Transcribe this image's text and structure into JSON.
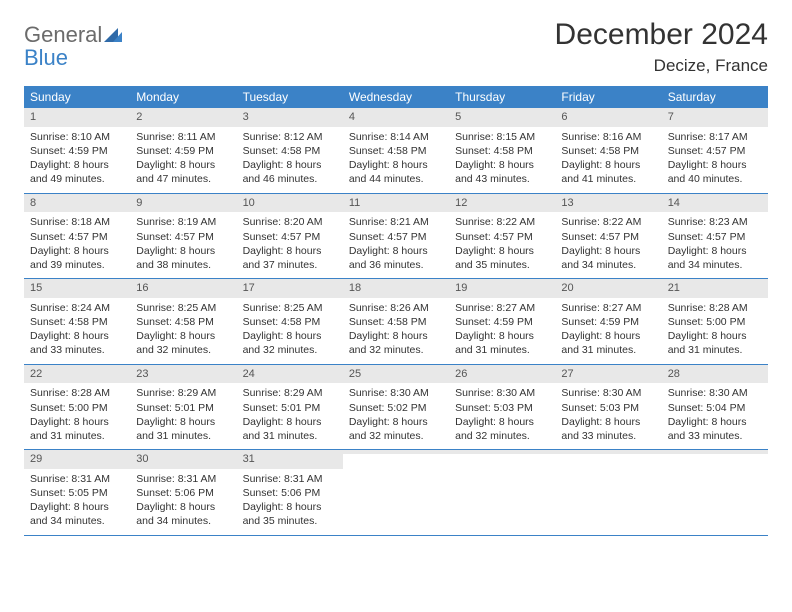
{
  "logo": {
    "general": "General",
    "blue": "Blue"
  },
  "header": {
    "title": "December 2024",
    "location": "Decize, France"
  },
  "colors": {
    "header_bg": "#3b82c7",
    "daynum_bg": "#e8e8e8",
    "text": "#333333",
    "logo_gray": "#6b6b6b",
    "logo_blue": "#3b82c7"
  },
  "weekdays": [
    "Sunday",
    "Monday",
    "Tuesday",
    "Wednesday",
    "Thursday",
    "Friday",
    "Saturday"
  ],
  "weeks": [
    [
      {
        "n": "1",
        "sr": "Sunrise: 8:10 AM",
        "ss": "Sunset: 4:59 PM",
        "d1": "Daylight: 8 hours",
        "d2": "and 49 minutes."
      },
      {
        "n": "2",
        "sr": "Sunrise: 8:11 AM",
        "ss": "Sunset: 4:59 PM",
        "d1": "Daylight: 8 hours",
        "d2": "and 47 minutes."
      },
      {
        "n": "3",
        "sr": "Sunrise: 8:12 AM",
        "ss": "Sunset: 4:58 PM",
        "d1": "Daylight: 8 hours",
        "d2": "and 46 minutes."
      },
      {
        "n": "4",
        "sr": "Sunrise: 8:14 AM",
        "ss": "Sunset: 4:58 PM",
        "d1": "Daylight: 8 hours",
        "d2": "and 44 minutes."
      },
      {
        "n": "5",
        "sr": "Sunrise: 8:15 AM",
        "ss": "Sunset: 4:58 PM",
        "d1": "Daylight: 8 hours",
        "d2": "and 43 minutes."
      },
      {
        "n": "6",
        "sr": "Sunrise: 8:16 AM",
        "ss": "Sunset: 4:58 PM",
        "d1": "Daylight: 8 hours",
        "d2": "and 41 minutes."
      },
      {
        "n": "7",
        "sr": "Sunrise: 8:17 AM",
        "ss": "Sunset: 4:57 PM",
        "d1": "Daylight: 8 hours",
        "d2": "and 40 minutes."
      }
    ],
    [
      {
        "n": "8",
        "sr": "Sunrise: 8:18 AM",
        "ss": "Sunset: 4:57 PM",
        "d1": "Daylight: 8 hours",
        "d2": "and 39 minutes."
      },
      {
        "n": "9",
        "sr": "Sunrise: 8:19 AM",
        "ss": "Sunset: 4:57 PM",
        "d1": "Daylight: 8 hours",
        "d2": "and 38 minutes."
      },
      {
        "n": "10",
        "sr": "Sunrise: 8:20 AM",
        "ss": "Sunset: 4:57 PM",
        "d1": "Daylight: 8 hours",
        "d2": "and 37 minutes."
      },
      {
        "n": "11",
        "sr": "Sunrise: 8:21 AM",
        "ss": "Sunset: 4:57 PM",
        "d1": "Daylight: 8 hours",
        "d2": "and 36 minutes."
      },
      {
        "n": "12",
        "sr": "Sunrise: 8:22 AM",
        "ss": "Sunset: 4:57 PM",
        "d1": "Daylight: 8 hours",
        "d2": "and 35 minutes."
      },
      {
        "n": "13",
        "sr": "Sunrise: 8:22 AM",
        "ss": "Sunset: 4:57 PM",
        "d1": "Daylight: 8 hours",
        "d2": "and 34 minutes."
      },
      {
        "n": "14",
        "sr": "Sunrise: 8:23 AM",
        "ss": "Sunset: 4:57 PM",
        "d1": "Daylight: 8 hours",
        "d2": "and 34 minutes."
      }
    ],
    [
      {
        "n": "15",
        "sr": "Sunrise: 8:24 AM",
        "ss": "Sunset: 4:58 PM",
        "d1": "Daylight: 8 hours",
        "d2": "and 33 minutes."
      },
      {
        "n": "16",
        "sr": "Sunrise: 8:25 AM",
        "ss": "Sunset: 4:58 PM",
        "d1": "Daylight: 8 hours",
        "d2": "and 32 minutes."
      },
      {
        "n": "17",
        "sr": "Sunrise: 8:25 AM",
        "ss": "Sunset: 4:58 PM",
        "d1": "Daylight: 8 hours",
        "d2": "and 32 minutes."
      },
      {
        "n": "18",
        "sr": "Sunrise: 8:26 AM",
        "ss": "Sunset: 4:58 PM",
        "d1": "Daylight: 8 hours",
        "d2": "and 32 minutes."
      },
      {
        "n": "19",
        "sr": "Sunrise: 8:27 AM",
        "ss": "Sunset: 4:59 PM",
        "d1": "Daylight: 8 hours",
        "d2": "and 31 minutes."
      },
      {
        "n": "20",
        "sr": "Sunrise: 8:27 AM",
        "ss": "Sunset: 4:59 PM",
        "d1": "Daylight: 8 hours",
        "d2": "and 31 minutes."
      },
      {
        "n": "21",
        "sr": "Sunrise: 8:28 AM",
        "ss": "Sunset: 5:00 PM",
        "d1": "Daylight: 8 hours",
        "d2": "and 31 minutes."
      }
    ],
    [
      {
        "n": "22",
        "sr": "Sunrise: 8:28 AM",
        "ss": "Sunset: 5:00 PM",
        "d1": "Daylight: 8 hours",
        "d2": "and 31 minutes."
      },
      {
        "n": "23",
        "sr": "Sunrise: 8:29 AM",
        "ss": "Sunset: 5:01 PM",
        "d1": "Daylight: 8 hours",
        "d2": "and 31 minutes."
      },
      {
        "n": "24",
        "sr": "Sunrise: 8:29 AM",
        "ss": "Sunset: 5:01 PM",
        "d1": "Daylight: 8 hours",
        "d2": "and 31 minutes."
      },
      {
        "n": "25",
        "sr": "Sunrise: 8:30 AM",
        "ss": "Sunset: 5:02 PM",
        "d1": "Daylight: 8 hours",
        "d2": "and 32 minutes."
      },
      {
        "n": "26",
        "sr": "Sunrise: 8:30 AM",
        "ss": "Sunset: 5:03 PM",
        "d1": "Daylight: 8 hours",
        "d2": "and 32 minutes."
      },
      {
        "n": "27",
        "sr": "Sunrise: 8:30 AM",
        "ss": "Sunset: 5:03 PM",
        "d1": "Daylight: 8 hours",
        "d2": "and 33 minutes."
      },
      {
        "n": "28",
        "sr": "Sunrise: 8:30 AM",
        "ss": "Sunset: 5:04 PM",
        "d1": "Daylight: 8 hours",
        "d2": "and 33 minutes."
      }
    ],
    [
      {
        "n": "29",
        "sr": "Sunrise: 8:31 AM",
        "ss": "Sunset: 5:05 PM",
        "d1": "Daylight: 8 hours",
        "d2": "and 34 minutes."
      },
      {
        "n": "30",
        "sr": "Sunrise: 8:31 AM",
        "ss": "Sunset: 5:06 PM",
        "d1": "Daylight: 8 hours",
        "d2": "and 34 minutes."
      },
      {
        "n": "31",
        "sr": "Sunrise: 8:31 AM",
        "ss": "Sunset: 5:06 PM",
        "d1": "Daylight: 8 hours",
        "d2": "and 35 minutes."
      },
      {
        "empty": true
      },
      {
        "empty": true
      },
      {
        "empty": true
      },
      {
        "empty": true
      }
    ]
  ]
}
